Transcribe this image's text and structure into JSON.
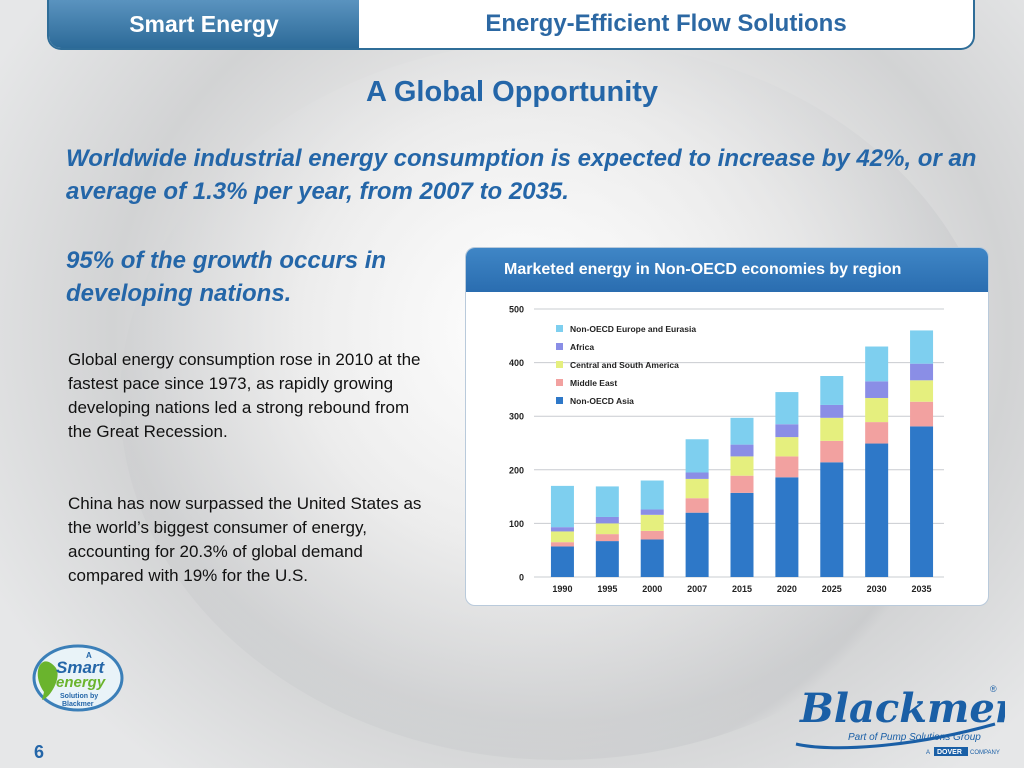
{
  "header": {
    "left_title": "Smart Energy",
    "right_title": "Energy-Efficient Flow Solutions"
  },
  "slide": {
    "title": "A Global Opportunity",
    "subtitle": "Worldwide industrial energy consumption is expected to increase by 42%, or an average of 1.3% per year, from 2007 to 2035.",
    "growth_note": "95% of the growth occurs in developing nations.",
    "paragraph1": "Global energy consumption rose in 2010 at the fastest pace since 1973, as rapidly growing developing nations led a strong rebound from the Great Recession.",
    "paragraph2": "China has now surpassed the United States as the world’s biggest consumer of energy, accounting for 20.3% of global demand compared with 19% for the U.S.",
    "page_number": "6"
  },
  "logos": {
    "smart_energy": {
      "line1": "A",
      "line2": "Smart",
      "line3": "energy",
      "line4": "Solution by",
      "line5": "Blackmer"
    },
    "blackmer": {
      "name": "Blackmer",
      "registered": "®",
      "tagline": "Part of Pump Solutions Group",
      "company_prefix": "A",
      "company": "DOVER",
      "company_suffix": "COMPANY"
    }
  },
  "chart_data": {
    "type": "bar",
    "stacked": true,
    "title": "Marketed energy in Non-OECD economies by region",
    "categories": [
      "1990",
      "1995",
      "2000",
      "2007",
      "2015",
      "2020",
      "2025",
      "2030",
      "2035"
    ],
    "ylim": [
      0,
      500
    ],
    "yticks": [
      0,
      100,
      200,
      300,
      400,
      500
    ],
    "grid": true,
    "legend_position": "top-left",
    "series": [
      {
        "name": "Non-OECD Asia",
        "color": "#2e78c8",
        "values": [
          57,
          67,
          70,
          120,
          157,
          186,
          214,
          249,
          281
        ]
      },
      {
        "name": "Middle East",
        "color": "#f2a1a0",
        "values": [
          8,
          13,
          16,
          27,
          32,
          39,
          40,
          40,
          46
        ]
      },
      {
        "name": "Central and South America",
        "color": "#e5ef7e",
        "values": [
          20,
          20,
          30,
          36,
          36,
          36,
          43,
          45,
          40
        ]
      },
      {
        "name": "Africa",
        "color": "#8a8ee6",
        "values": [
          8,
          12,
          10,
          12,
          22,
          24,
          24,
          31,
          31
        ]
      },
      {
        "name": "Non-OECD Europe and Eurasia",
        "color": "#7ecfef",
        "values": [
          77,
          57,
          54,
          62,
          50,
          60,
          54,
          65,
          62
        ]
      }
    ]
  }
}
